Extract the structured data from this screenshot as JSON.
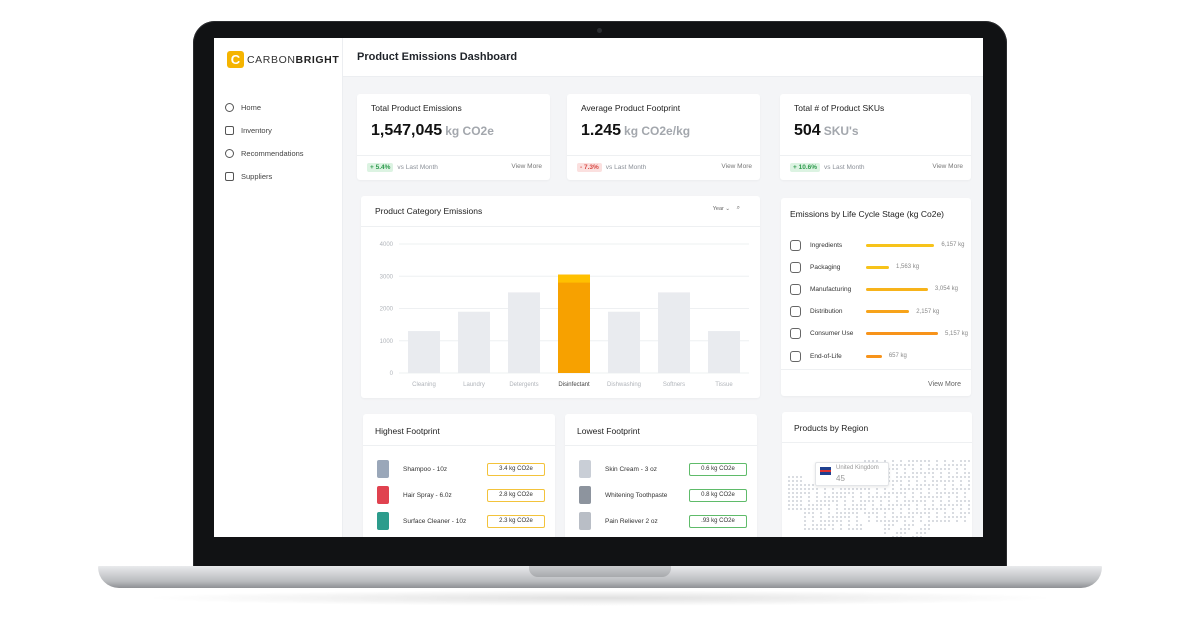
{
  "brand": {
    "mark": "C",
    "name_light": "CARBON",
    "name_bold": "BRIGHT"
  },
  "sidebar": {
    "items": [
      {
        "label": "Home",
        "icon": "home-icon"
      },
      {
        "label": "Inventory",
        "icon": "inventory-icon"
      },
      {
        "label": "Recommendations",
        "icon": "recommendations-icon"
      },
      {
        "label": "Suppliers",
        "icon": "suppliers-icon"
      }
    ]
  },
  "header": {
    "title": "Product Emissions Dashboard"
  },
  "kpis": [
    {
      "title": "Total Product Emissions",
      "value": "1,547,045",
      "unit": "kg CO2e",
      "change": "+ 5.4%",
      "direction": "up",
      "compare": "vs Last Month",
      "link": "View More"
    },
    {
      "title": "Average Product Footprint",
      "value": "1.245",
      "unit": "kg CO2e/kg",
      "change": "- 7.3%",
      "direction": "down",
      "compare": "vs Last Month",
      "link": "View More"
    },
    {
      "title": "Total # of Product SKUs",
      "value": "504",
      "unit": "SKU's",
      "change": "+ 10.6%",
      "direction": "up",
      "compare": "vs Last Month",
      "link": "View More"
    }
  ],
  "category_chart": {
    "title": "Product Category Emissions",
    "period": "Year ⌄",
    "zoom_icon": "search-icon"
  },
  "chart_data": {
    "type": "bar",
    "categories": [
      "Cleaning",
      "Laundry",
      "Detergents",
      "Disinfectant",
      "Dishwashing",
      "Softners",
      "Tissue"
    ],
    "values": [
      1300,
      1900,
      2500,
      3050,
      1900,
      2500,
      1300
    ],
    "highlight": "Disinfectant",
    "yticks": [
      0,
      1000,
      2000,
      3000,
      4000
    ],
    "ylim": [
      0,
      4000
    ],
    "colors": {
      "highlight": "#f7a100",
      "default": "#e9ebef"
    }
  },
  "lifecycle": {
    "title": "Emissions by Life Cycle Stage (kg Co2e)",
    "link": "View More",
    "stages": [
      {
        "label": "Ingredients",
        "value": "6,157 kg",
        "share": 0.95,
        "color": "#f7c31a",
        "icon": "ingredients-icon"
      },
      {
        "label": "Packaging",
        "value": "1,563 kg",
        "share": 0.32,
        "color": "#f7c31a",
        "icon": "packaging-icon"
      },
      {
        "label": "Manufacturing",
        "value": "3,054 kg",
        "share": 0.86,
        "color": "#f7b31a",
        "icon": "factory-icon"
      },
      {
        "label": "Distribution",
        "value": "2,157 kg",
        "share": 0.6,
        "color": "#f7a31a",
        "icon": "truck-icon"
      },
      {
        "label": "Consumer Use",
        "value": "5,157 kg",
        "share": 1.0,
        "color": "#f7931a",
        "icon": "user-icon"
      },
      {
        "label": "End-of-Life",
        "value": "657 kg",
        "share": 0.22,
        "color": "#f7931a",
        "icon": "recycle-icon"
      }
    ]
  },
  "highest": {
    "title": "Highest Footprint",
    "items": [
      {
        "name": "Shampoo - 10z",
        "value": "3.4 kg CO2e",
        "color": "#9aa7b9"
      },
      {
        "name": "Hair Spray - 6.0z",
        "value": "2.8 kg CO2e",
        "color": "#e0424f"
      },
      {
        "name": "Surface Cleaner - 10z",
        "value": "2.3 kg CO2e",
        "color": "#2c9c8c"
      }
    ]
  },
  "lowest": {
    "title": "Lowest Footprint",
    "items": [
      {
        "name": "Skin Cream - 3 oz",
        "value": "0.6 kg CO2e",
        "color": "#c9ced6"
      },
      {
        "name": "Whitening Toothpaste",
        "value": "0.8 kg CO2e",
        "color": "#8d949e"
      },
      {
        "name": "Pain Reliever 2 oz",
        "value": ".93 kg CO2e",
        "color": "#b9bec6"
      }
    ]
  },
  "region": {
    "title": "Products by Region",
    "tooltip_country": "United Kingdom",
    "tooltip_count": "45"
  }
}
